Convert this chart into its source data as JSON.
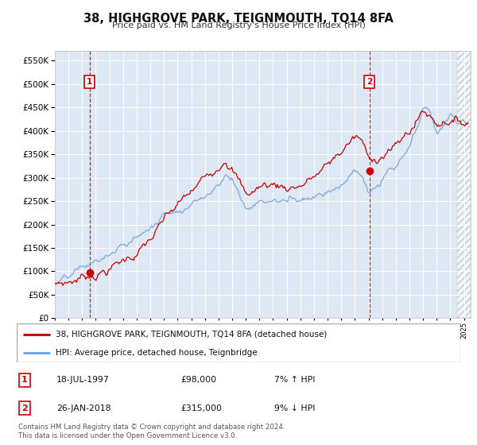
{
  "title": "38, HIGHGROVE PARK, TEIGNMOUTH, TQ14 8FA",
  "subtitle": "Price paid vs. HM Land Registry's House Price Index (HPI)",
  "yvalues": [
    0,
    50000,
    100000,
    150000,
    200000,
    250000,
    300000,
    350000,
    400000,
    450000,
    500000,
    550000
  ],
  "ylim": [
    0,
    570000
  ],
  "sale1_date": 1997.55,
  "sale1_price": 98000,
  "sale2_date": 2018.07,
  "sale2_price": 315000,
  "legend_line1": "38, HIGHGROVE PARK, TEIGNMOUTH, TQ14 8FA (detached house)",
  "legend_line2": "HPI: Average price, detached house, Teignbridge",
  "table_row1": [
    "1",
    "18-JUL-1997",
    "£98,000",
    "7% ↑ HPI"
  ],
  "table_row2": [
    "2",
    "26-JAN-2018",
    "£315,000",
    "9% ↓ HPI"
  ],
  "footer": "Contains HM Land Registry data © Crown copyright and database right 2024.\nThis data is licensed under the Open Government Licence v3.0.",
  "sale_color": "#cc0000",
  "hpi_color": "#7aaadd",
  "bg_color": "#dde8f4",
  "grid_color": "#ffffff",
  "xmin": 1995.0,
  "xmax": 2025.5,
  "hatch_start": 2024.5
}
